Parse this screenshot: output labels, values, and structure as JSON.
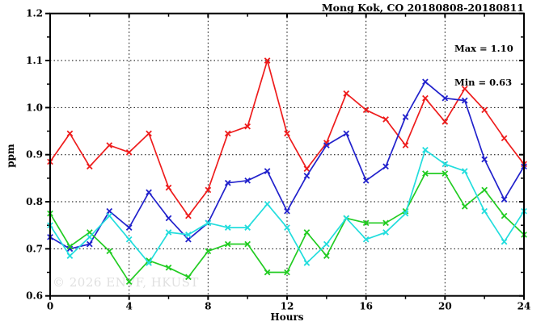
{
  "title": "Mong Kok, CO 20180808-20180811",
  "stats": {
    "max_label": "Max = 1.10",
    "min_label": "Min = 0.63"
  },
  "watermark": "© 2026 ENVF, HKUST",
  "axes": {
    "x_label": "Hours",
    "y_label": "ppm"
  },
  "chart_data": {
    "type": "line",
    "title": "Mong Kok, CO 20180808-20180811",
    "xlabel": "Hours",
    "ylabel": "ppm",
    "xlim": [
      0,
      24
    ],
    "ylim": [
      0.6,
      1.2
    ],
    "x_ticks": [
      0,
      4,
      8,
      12,
      16,
      20,
      24
    ],
    "x_minor_ticks": [
      2,
      6,
      10,
      14,
      18,
      22
    ],
    "y_ticks": [
      0.6,
      0.7,
      0.8,
      0.9,
      1.0,
      1.1,
      1.2
    ],
    "y_minor_ticks": [
      0.65,
      0.75,
      0.85,
      0.95,
      1.05,
      1.15
    ],
    "grid": "dotted",
    "legend": "none",
    "marker": "x",
    "x": [
      0,
      1,
      2,
      3,
      4,
      5,
      6,
      7,
      8,
      9,
      10,
      11,
      12,
      13,
      14,
      15,
      16,
      17,
      18,
      19,
      20,
      21,
      22,
      23,
      24
    ],
    "series": [
      {
        "name": "series-red",
        "color": "#ee1c1c",
        "values": [
          0.885,
          0.945,
          0.875,
          0.92,
          0.905,
          0.945,
          0.83,
          0.77,
          0.825,
          0.945,
          0.96,
          1.1,
          0.945,
          0.87,
          0.925,
          1.03,
          0.995,
          0.975,
          0.92,
          1.02,
          0.97,
          1.04,
          0.995,
          0.935,
          0.88
        ]
      },
      {
        "name": "series-blue",
        "color": "#2222cc",
        "values": [
          0.725,
          0.7,
          0.71,
          0.78,
          0.745,
          0.82,
          0.765,
          0.72,
          0.755,
          0.84,
          0.845,
          0.865,
          0.78,
          0.855,
          0.92,
          0.945,
          0.845,
          0.875,
          0.98,
          1.055,
          1.02,
          1.015,
          0.89,
          0.805,
          0.875
        ]
      },
      {
        "name": "series-green",
        "color": "#22cc22",
        "values": [
          0.775,
          0.705,
          0.735,
          0.695,
          0.63,
          0.675,
          0.66,
          0.64,
          0.695,
          0.71,
          0.71,
          0.65,
          0.65,
          0.735,
          0.685,
          0.765,
          0.755,
          0.755,
          0.78,
          0.86,
          0.86,
          0.79,
          0.825,
          0.77,
          0.73
        ]
      },
      {
        "name": "series-cyan",
        "color": "#22dddd",
        "values": [
          0.75,
          0.685,
          0.725,
          0.77,
          0.72,
          0.67,
          0.735,
          0.73,
          0.755,
          0.745,
          0.745,
          0.795,
          0.745,
          0.67,
          0.71,
          0.765,
          0.72,
          0.735,
          0.775,
          0.91,
          0.88,
          0.865,
          0.78,
          0.715,
          0.78
        ]
      }
    ],
    "annotations": {
      "max": 1.1,
      "min": 0.63
    }
  }
}
